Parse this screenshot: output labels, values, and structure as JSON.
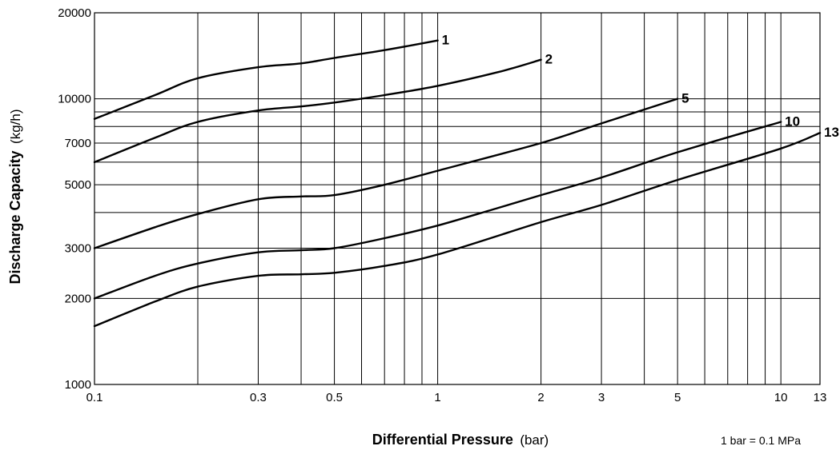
{
  "chart_data": {
    "type": "line",
    "x_scale": "log",
    "y_scale": "log",
    "xlim": [
      0.1,
      13
    ],
    "ylim": [
      1000,
      20000
    ],
    "grid": true,
    "xlabel": "Differential Pressure",
    "xlabel_unit": "(bar)",
    "ylabel": "Discharge Capacity",
    "ylabel_unit": "(kg/h)",
    "note": "1 bar = 0.1 MPa",
    "x_ticks": [
      0.1,
      0.3,
      0.5,
      1,
      2,
      3,
      5,
      10,
      13
    ],
    "x_tick_labels": [
      "0.1",
      "0.3",
      "0.5",
      "1",
      "2",
      "3",
      "5",
      "10",
      "13"
    ],
    "y_ticks": [
      1000,
      2000,
      3000,
      5000,
      7000,
      10000,
      20000
    ],
    "y_tick_labels": [
      "1000",
      "2000",
      "3000",
      "5000",
      "7000",
      "10000",
      "20000"
    ],
    "x_gridlines": [
      0.2,
      0.3,
      0.4,
      0.5,
      0.6,
      0.7,
      0.8,
      0.9,
      1,
      2,
      3,
      4,
      5,
      6,
      7,
      8,
      9,
      10
    ],
    "y_gridlines": [
      2000,
      3000,
      4000,
      5000,
      6000,
      7000,
      8000,
      9000,
      10000
    ],
    "series": [
      {
        "name": "1",
        "x": [
          0.1,
          0.15,
          0.2,
          0.3,
          0.4,
          0.5,
          0.7,
          1
        ],
        "y": [
          8500,
          10300,
          11800,
          12900,
          13300,
          13900,
          14800,
          16000
        ]
      },
      {
        "name": "2",
        "x": [
          0.1,
          0.15,
          0.2,
          0.3,
          0.4,
          0.5,
          0.7,
          1,
          1.5,
          2
        ],
        "y": [
          6000,
          7300,
          8300,
          9100,
          9400,
          9700,
          10300,
          11100,
          12400,
          13700
        ]
      },
      {
        "name": "5",
        "x": [
          0.1,
          0.15,
          0.2,
          0.3,
          0.4,
          0.5,
          0.7,
          1,
          2,
          3,
          5
        ],
        "y": [
          3000,
          3550,
          3950,
          4450,
          4550,
          4600,
          5000,
          5600,
          7000,
          8200,
          10000
        ]
      },
      {
        "name": "10",
        "x": [
          0.1,
          0.15,
          0.2,
          0.3,
          0.4,
          0.5,
          0.7,
          1,
          1.5,
          2,
          3,
          5,
          10
        ],
        "y": [
          2000,
          2400,
          2650,
          2900,
          2950,
          3000,
          3250,
          3600,
          4150,
          4600,
          5300,
          6500,
          8300
        ]
      },
      {
        "name": "13",
        "x": [
          0.1,
          0.15,
          0.2,
          0.3,
          0.4,
          0.5,
          0.7,
          1,
          2,
          3,
          5,
          10,
          13
        ],
        "y": [
          1600,
          1950,
          2200,
          2400,
          2430,
          2460,
          2600,
          2850,
          3700,
          4250,
          5200,
          6700,
          7600
        ]
      }
    ]
  }
}
